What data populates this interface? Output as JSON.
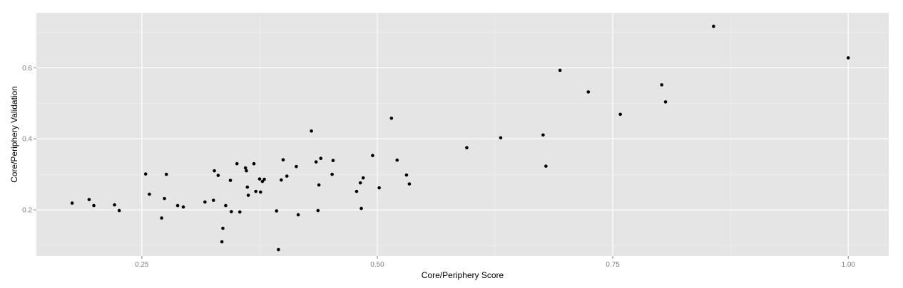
{
  "chart_data": {
    "type": "scatter",
    "xlabel": "Core/Periphery Score",
    "ylabel": "Core/Periphery Validation",
    "xlim": [
      0.138,
      1.043
    ],
    "ylim": [
      0.07,
      0.755
    ],
    "x_ticks": [
      0.25,
      0.5,
      0.75,
      1.0
    ],
    "x_tick_labels": [
      "0.25",
      "0.50",
      "0.75",
      "1.00"
    ],
    "y_ticks": [
      0.2,
      0.4,
      0.6
    ],
    "y_tick_labels": [
      "0.2",
      "0.4",
      "0.6"
    ],
    "grid": true,
    "colors": {
      "panel": "#e5e5e5",
      "grid_major": "#ffffff",
      "grid_minor": "#f2f2f2",
      "point": "#000000",
      "tick_label": "#7f7f7f"
    },
    "points": [
      {
        "x": 0.176,
        "y": 0.219
      },
      {
        "x": 0.194,
        "y": 0.229
      },
      {
        "x": 0.199,
        "y": 0.212
      },
      {
        "x": 0.221,
        "y": 0.214
      },
      {
        "x": 0.226,
        "y": 0.198
      },
      {
        "x": 0.254,
        "y": 0.301
      },
      {
        "x": 0.258,
        "y": 0.244
      },
      {
        "x": 0.271,
        "y": 0.177
      },
      {
        "x": 0.274,
        "y": 0.232
      },
      {
        "x": 0.276,
        "y": 0.3
      },
      {
        "x": 0.288,
        "y": 0.212
      },
      {
        "x": 0.294,
        "y": 0.208
      },
      {
        "x": 0.317,
        "y": 0.222
      },
      {
        "x": 0.326,
        "y": 0.227
      },
      {
        "x": 0.327,
        "y": 0.31
      },
      {
        "x": 0.331,
        "y": 0.297
      },
      {
        "x": 0.335,
        "y": 0.11
      },
      {
        "x": 0.336,
        "y": 0.148
      },
      {
        "x": 0.339,
        "y": 0.212
      },
      {
        "x": 0.344,
        "y": 0.283
      },
      {
        "x": 0.345,
        "y": 0.195
      },
      {
        "x": 0.351,
        "y": 0.33
      },
      {
        "x": 0.354,
        "y": 0.194
      },
      {
        "x": 0.36,
        "y": 0.318
      },
      {
        "x": 0.361,
        "y": 0.31
      },
      {
        "x": 0.362,
        "y": 0.264
      },
      {
        "x": 0.363,
        "y": 0.241
      },
      {
        "x": 0.369,
        "y": 0.33
      },
      {
        "x": 0.371,
        "y": 0.252
      },
      {
        "x": 0.375,
        "y": 0.287
      },
      {
        "x": 0.376,
        "y": 0.25
      },
      {
        "x": 0.378,
        "y": 0.28
      },
      {
        "x": 0.38,
        "y": 0.286
      },
      {
        "x": 0.393,
        "y": 0.197
      },
      {
        "x": 0.395,
        "y": 0.088
      },
      {
        "x": 0.398,
        "y": 0.284
      },
      {
        "x": 0.4,
        "y": 0.341
      },
      {
        "x": 0.404,
        "y": 0.295
      },
      {
        "x": 0.414,
        "y": 0.322
      },
      {
        "x": 0.416,
        "y": 0.186
      },
      {
        "x": 0.43,
        "y": 0.422
      },
      {
        "x": 0.435,
        "y": 0.335
      },
      {
        "x": 0.437,
        "y": 0.198
      },
      {
        "x": 0.438,
        "y": 0.27
      },
      {
        "x": 0.44,
        "y": 0.345
      },
      {
        "x": 0.452,
        "y": 0.3
      },
      {
        "x": 0.453,
        "y": 0.339
      },
      {
        "x": 0.478,
        "y": 0.252
      },
      {
        "x": 0.482,
        "y": 0.276
      },
      {
        "x": 0.483,
        "y": 0.204
      },
      {
        "x": 0.485,
        "y": 0.29
      },
      {
        "x": 0.495,
        "y": 0.353
      },
      {
        "x": 0.502,
        "y": 0.262
      },
      {
        "x": 0.515,
        "y": 0.458
      },
      {
        "x": 0.521,
        "y": 0.34
      },
      {
        "x": 0.531,
        "y": 0.298
      },
      {
        "x": 0.534,
        "y": 0.273
      },
      {
        "x": 0.595,
        "y": 0.375
      },
      {
        "x": 0.631,
        "y": 0.403
      },
      {
        "x": 0.676,
        "y": 0.411
      },
      {
        "x": 0.679,
        "y": 0.323
      },
      {
        "x": 0.694,
        "y": 0.593
      },
      {
        "x": 0.724,
        "y": 0.532
      },
      {
        "x": 0.758,
        "y": 0.469
      },
      {
        "x": 0.802,
        "y": 0.552
      },
      {
        "x": 0.806,
        "y": 0.504
      },
      {
        "x": 0.857,
        "y": 0.717
      },
      {
        "x": 1.0,
        "y": 0.628
      }
    ]
  }
}
